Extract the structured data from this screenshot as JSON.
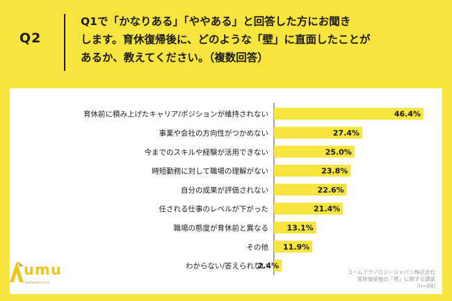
{
  "question": {
    "label": "Q2",
    "lines": [
      "Q1で「かなりある」「ややある」と回答した方にお聞き",
      "します。育休復帰後に、どのような「壁」に直面したことが",
      "あるか、教えてください。（複数回答）"
    ]
  },
  "footnote": {
    "line1": "ユームテクノロジージャパン株式会社",
    "line2": "育休復帰後の「壁」に関する調査",
    "line3": "(n=84)"
  },
  "logo": {
    "name": "umu",
    "url": "www.umu.co"
  },
  "colors": {
    "background": "#f7e43c",
    "bar": "#f7e43c",
    "panel": "#ffffff"
  },
  "chart_data": {
    "type": "bar",
    "orientation": "horizontal",
    "categories": [
      "育休前に積み上げたキャリア/ポジションが維持されない",
      "事業や会社の方向性がつかめない",
      "今までのスキルや経験が活用できない",
      "時短勤務に対して職場の理解がない",
      "自分の成果が評価されない",
      "任される仕事のレベルが下がった",
      "職場の態度が育休前と異なる",
      "その他",
      "わからない/答えられない"
    ],
    "values": [
      46.4,
      27.4,
      25.0,
      23.8,
      22.6,
      21.4,
      13.1,
      11.9,
      2.4
    ],
    "value_labels": [
      "46.4%",
      "27.4%",
      "25.0%",
      "23.8%",
      "22.6%",
      "21.4%",
      "13.1%",
      "11.9%",
      "2.4%"
    ],
    "xlim": [
      0,
      50
    ]
  }
}
